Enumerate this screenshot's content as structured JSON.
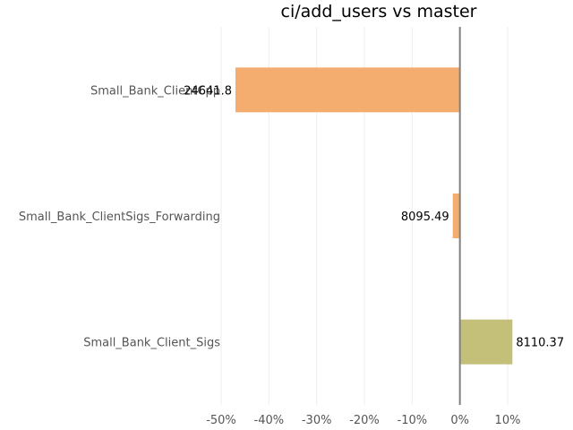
{
  "chart_data": {
    "type": "bar",
    "orientation": "horizontal",
    "title": "ci/add_users vs master",
    "xlabel": "",
    "ylabel": "",
    "xlim": [
      -53,
      13
    ],
    "xticks": [
      -50,
      -40,
      -30,
      -20,
      -10,
      0,
      10
    ],
    "xtick_labels": [
      "-50%",
      "-40%",
      "-30%",
      "-20%",
      "-10%",
      "0%",
      "10%"
    ],
    "grid": true,
    "categories": [
      "Small_Bank_ClientCpp",
      "Small_Bank_ClientSigs_Forwarding",
      "Small_Bank_Client_Sigs"
    ],
    "values": [
      -47,
      -1.5,
      11
    ],
    "data_labels": [
      "24641.8",
      "8095.49",
      "8110.37"
    ],
    "colors": [
      "#f5ad6f",
      "#f5ad6f",
      "#c4bf79"
    ]
  }
}
